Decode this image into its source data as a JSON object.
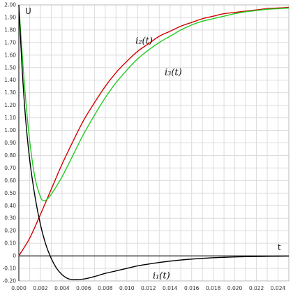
{
  "chart_data": {
    "type": "line",
    "title": "",
    "xlabel": "t",
    "ylabel": "U",
    "xlim": [
      0,
      0.025
    ],
    "ylim": [
      -0.2,
      2.0
    ],
    "grid": true,
    "x_ticks": [
      "0.000",
      "0.002",
      "0.004",
      "0.006",
      "0.008",
      "0.010",
      "0.012",
      "0.014",
      "0.016",
      "0.018",
      "0.020",
      "0.022",
      "0.024"
    ],
    "y_ticks": [
      "-0.20",
      "-0.10",
      "0",
      "0.10",
      "0.20",
      "0.30",
      "0.40",
      "0.50",
      "0.60",
      "0.70",
      "0.80",
      "0.90",
      "1.00",
      "1.10",
      "1.20",
      "1.30",
      "1.40",
      "1.50",
      "1.60",
      "1.70",
      "1.80",
      "1.90",
      "2.00"
    ],
    "series": [
      {
        "name": "i₂(t)",
        "color": "#d40000",
        "x": [
          0,
          0.001,
          0.002,
          0.003,
          0.004,
          0.005,
          0.006,
          0.007,
          0.008,
          0.009,
          0.01,
          0.011,
          0.012,
          0.013,
          0.014,
          0.015,
          0.016,
          0.017,
          0.018,
          0.019,
          0.02,
          0.021,
          0.022,
          0.023,
          0.024,
          0.025
        ],
        "values": [
          0.0,
          0.14,
          0.33,
          0.53,
          0.73,
          0.91,
          1.08,
          1.22,
          1.35,
          1.46,
          1.55,
          1.63,
          1.69,
          1.75,
          1.79,
          1.83,
          1.86,
          1.89,
          1.91,
          1.93,
          1.94,
          1.95,
          1.96,
          1.97,
          1.975,
          1.98
        ]
      },
      {
        "name": "i₃(t)",
        "color": "#22cc22",
        "x": [
          0,
          0.0003,
          0.0006,
          0.001,
          0.0015,
          0.002,
          0.0023,
          0.0026,
          0.003,
          0.004,
          0.005,
          0.006,
          0.007,
          0.008,
          0.009,
          0.01,
          0.011,
          0.012,
          0.013,
          0.014,
          0.015,
          0.016,
          0.017,
          0.018,
          0.019,
          0.02,
          0.021,
          0.022,
          0.023,
          0.024,
          0.025
        ],
        "values": [
          2.0,
          1.62,
          1.28,
          0.92,
          0.62,
          0.47,
          0.44,
          0.45,
          0.49,
          0.63,
          0.8,
          0.97,
          1.12,
          1.26,
          1.38,
          1.48,
          1.57,
          1.64,
          1.7,
          1.75,
          1.8,
          1.84,
          1.87,
          1.89,
          1.91,
          1.93,
          1.945,
          1.955,
          1.965,
          1.97,
          1.975
        ]
      },
      {
        "name": "i₁(t)",
        "color": "#000000",
        "x": [
          0,
          0.0003,
          0.0006,
          0.001,
          0.0015,
          0.002,
          0.0025,
          0.003,
          0.0035,
          0.004,
          0.0045,
          0.005,
          0.006,
          0.007,
          0.008,
          0.009,
          0.01,
          0.011,
          0.012,
          0.013,
          0.014,
          0.015,
          0.016,
          0.017,
          0.018,
          0.019,
          0.02,
          0.021,
          0.022,
          0.023,
          0.024,
          0.025
        ],
        "values": [
          2.0,
          1.5,
          1.12,
          0.77,
          0.47,
          0.25,
          0.09,
          -0.02,
          -0.1,
          -0.15,
          -0.18,
          -0.19,
          -0.185,
          -0.165,
          -0.14,
          -0.12,
          -0.1,
          -0.08,
          -0.066,
          -0.053,
          -0.042,
          -0.033,
          -0.026,
          -0.02,
          -0.015,
          -0.012,
          -0.009,
          -0.007,
          -0.005,
          -0.004,
          -0.003,
          -0.002
        ]
      }
    ],
    "labels": [
      {
        "series": 0,
        "text": "i₂(t)",
        "x": 0.0108,
        "y": 1.69
      },
      {
        "series": 1,
        "text": "i₃(t)",
        "x": 0.0135,
        "y": 1.44
      },
      {
        "series": 2,
        "text": "i₁(t)",
        "x": 0.0124,
        "y": -0.18
      }
    ]
  }
}
